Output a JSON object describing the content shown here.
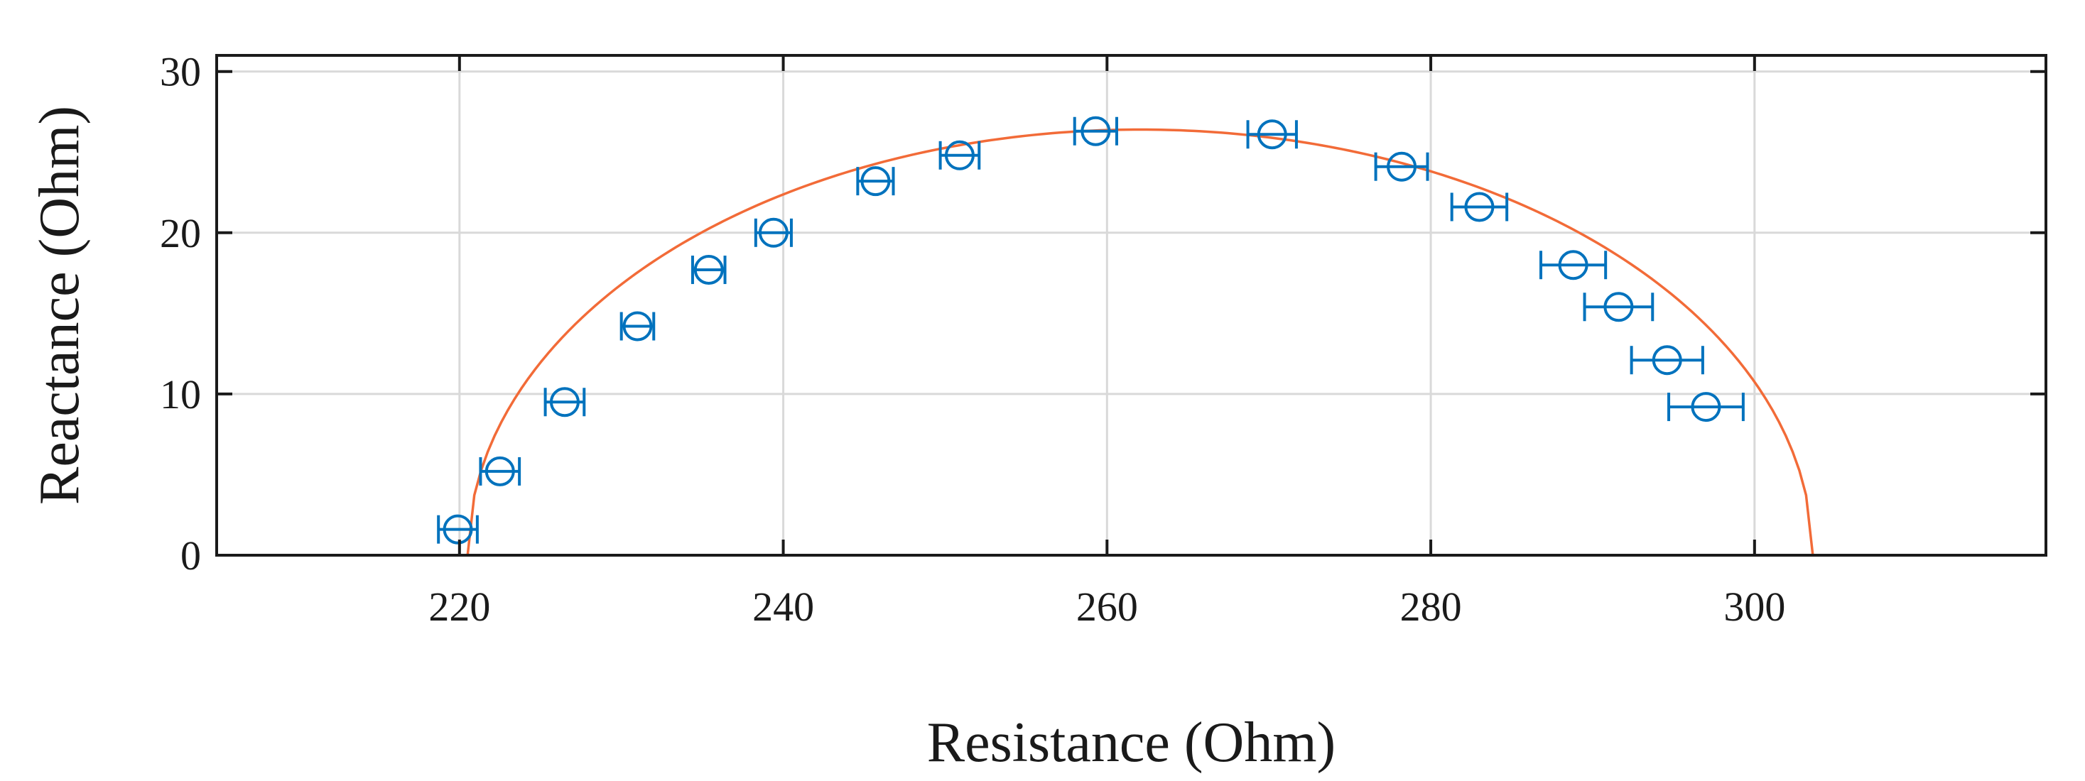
{
  "chart_data": {
    "type": "scatter",
    "title": "",
    "xlabel": "Resistance (Ohm)",
    "ylabel": "Reactance (Ohm)",
    "xlim": [
      205,
      318
    ],
    "ylim": [
      0,
      31
    ],
    "xticks": [
      220,
      240,
      260,
      280,
      300
    ],
    "yticks": [
      0,
      10,
      20,
      30
    ],
    "grid": true,
    "legend": "none",
    "colors": {
      "markers": "#0072BD",
      "fit": "#F26B38",
      "frame": "#1a1a1a",
      "grid": "#d9d9d9"
    },
    "series": [
      {
        "marker": "circle",
        "error_bars": "horizontal",
        "points": [
          {
            "x": 219.9,
            "y": 1.6,
            "xerr": 1.2
          },
          {
            "x": 222.5,
            "y": 5.2,
            "xerr": 1.2
          },
          {
            "x": 226.5,
            "y": 9.5,
            "xerr": 1.2
          },
          {
            "x": 231.0,
            "y": 14.2,
            "xerr": 1.0
          },
          {
            "x": 235.4,
            "y": 17.7,
            "xerr": 1.0
          },
          {
            "x": 239.4,
            "y": 20.0,
            "xerr": 1.1
          },
          {
            "x": 245.7,
            "y": 23.2,
            "xerr": 1.1
          },
          {
            "x": 250.9,
            "y": 24.8,
            "xerr": 1.2
          },
          {
            "x": 259.3,
            "y": 26.3,
            "xerr": 1.3
          },
          {
            "x": 270.2,
            "y": 26.1,
            "xerr": 1.5
          },
          {
            "x": 278.2,
            "y": 24.1,
            "xerr": 1.6
          },
          {
            "x": 283.0,
            "y": 21.6,
            "xerr": 1.7
          },
          {
            "x": 288.8,
            "y": 18.0,
            "xerr": 2.0
          },
          {
            "x": 291.6,
            "y": 15.4,
            "xerr": 2.1
          },
          {
            "x": 294.6,
            "y": 12.1,
            "xerr": 2.2
          },
          {
            "x": 297.0,
            "y": 9.2,
            "xerr": 2.3
          }
        ]
      }
    ],
    "fit": {
      "type": "semicircle-arc",
      "x_start": 220.5,
      "x_end": 303.6,
      "y_max": 26.4
    }
  }
}
